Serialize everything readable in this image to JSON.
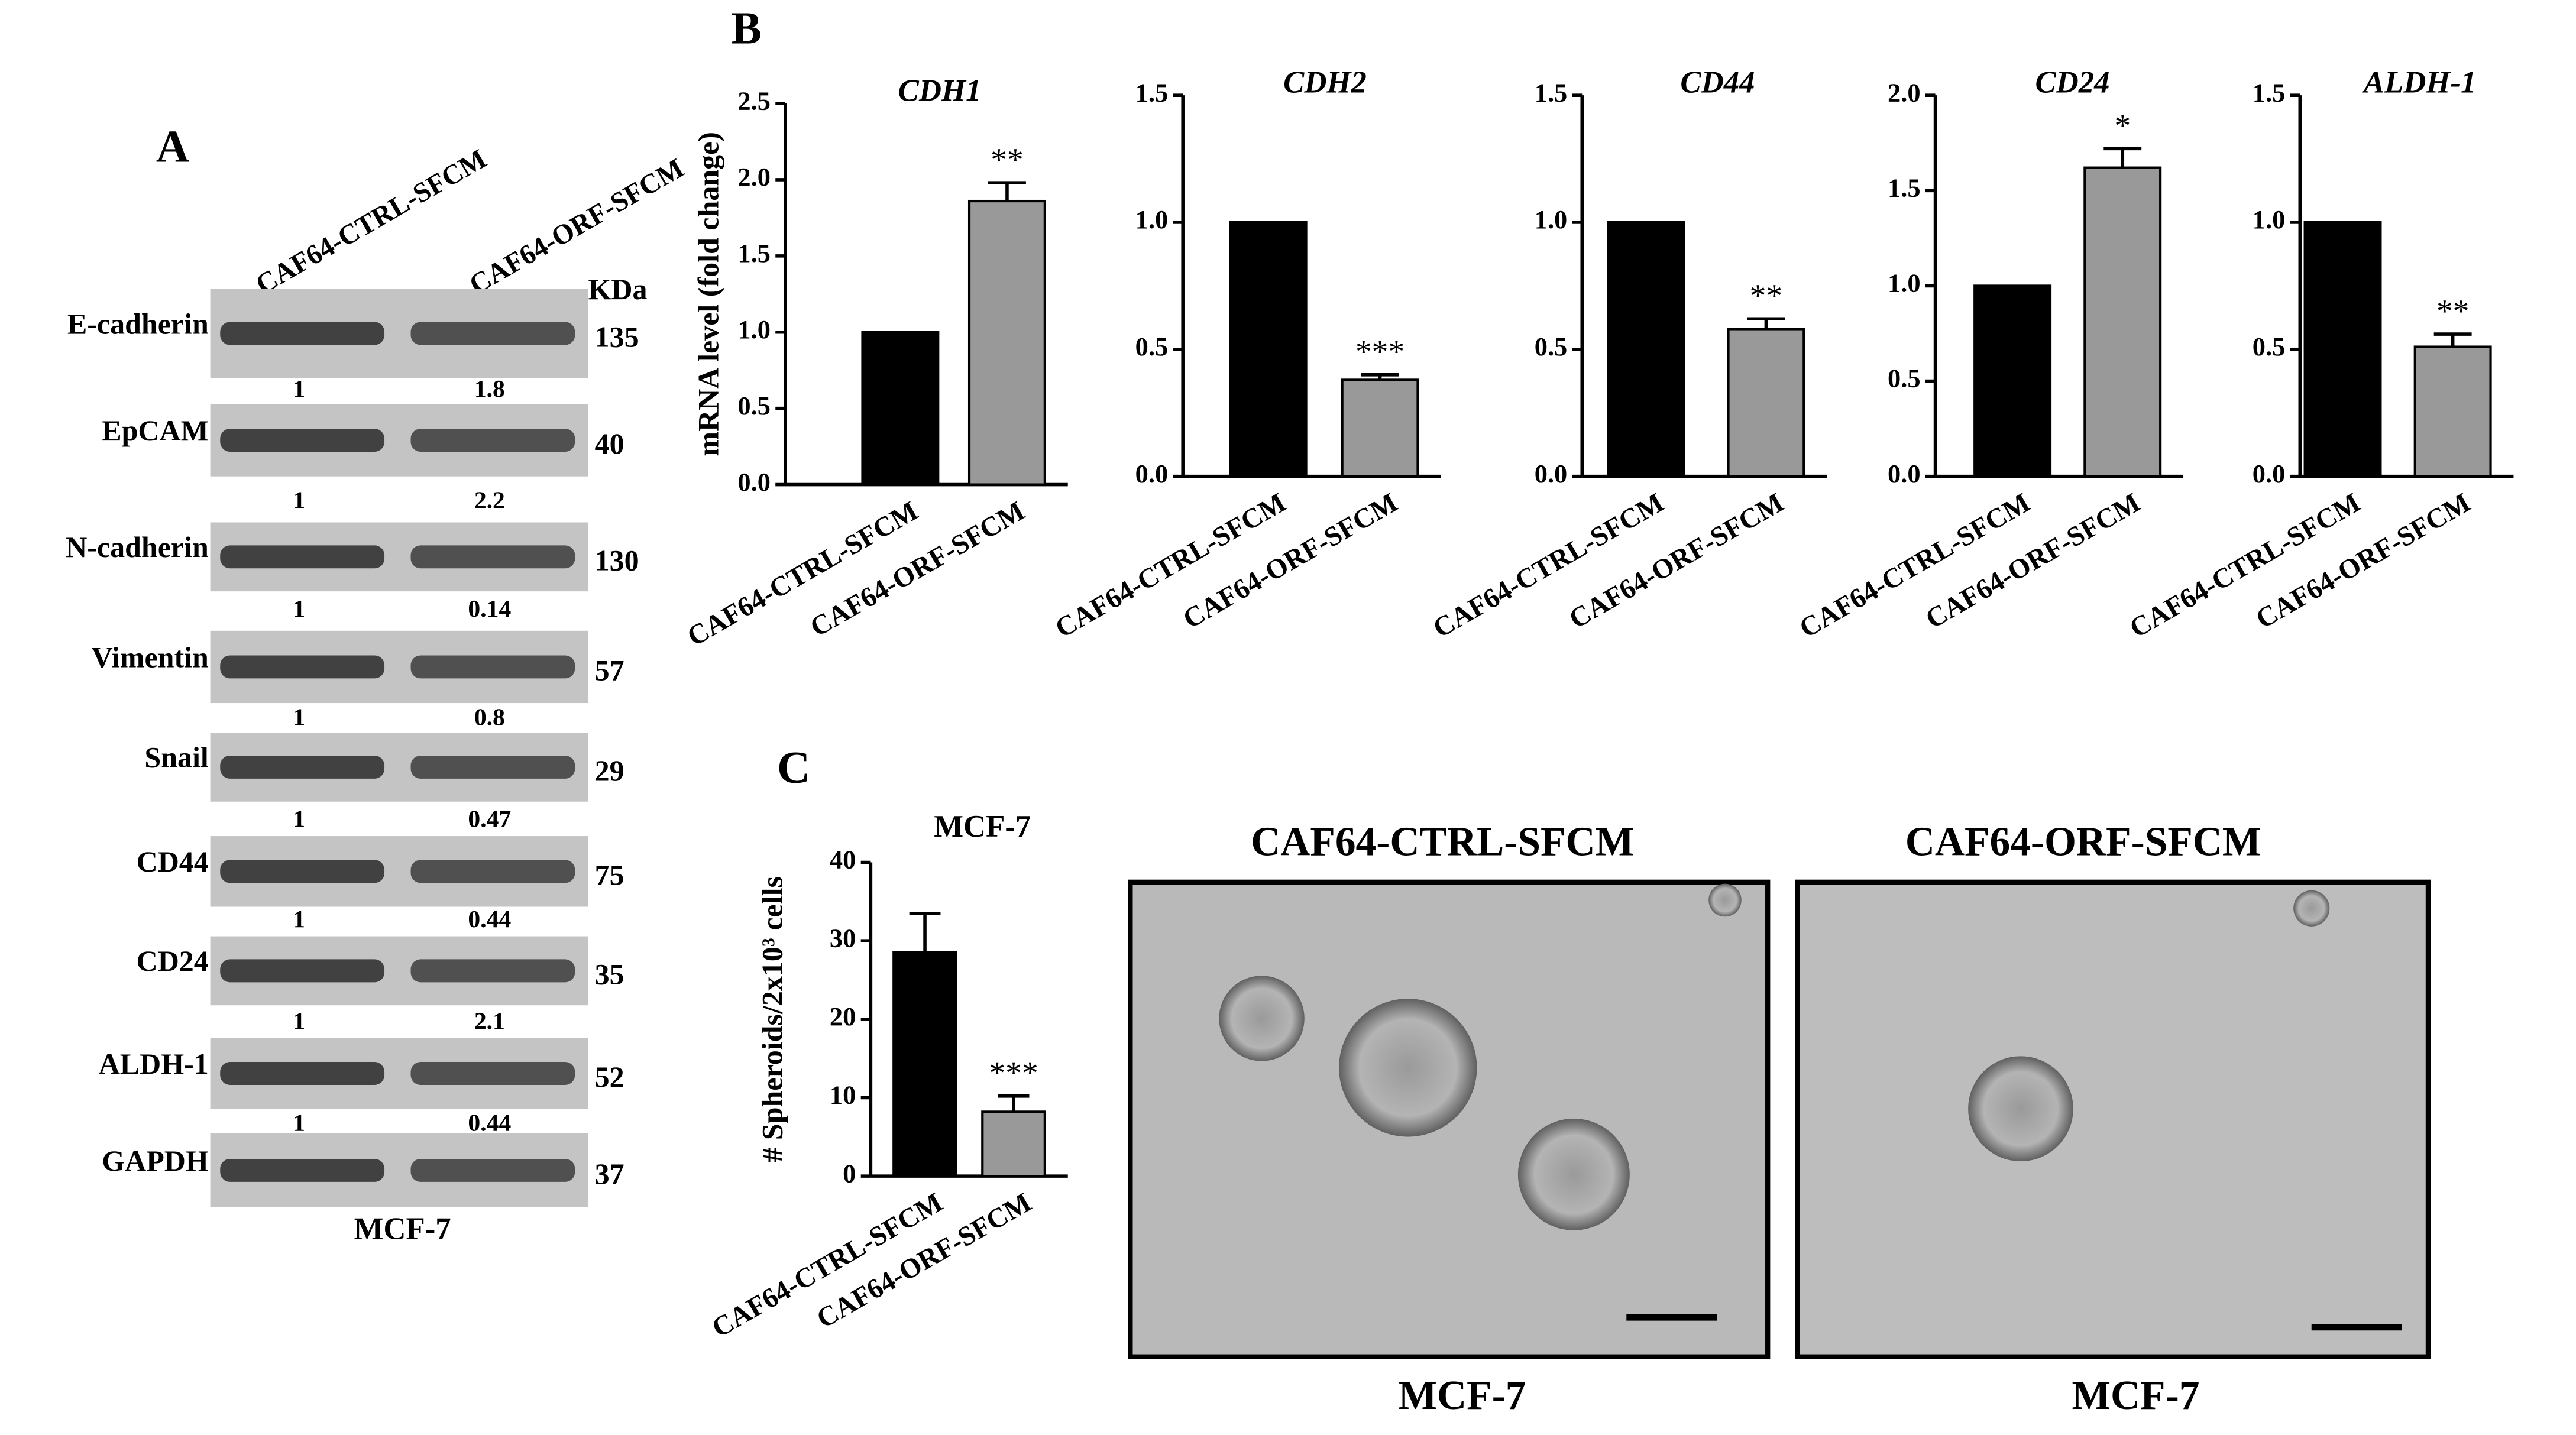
{
  "panel_labels": [
    "A",
    "B",
    "C"
  ],
  "western_blot": {
    "lanes": [
      "CAF64-CTRL-SFCM",
      "CAF64-ORF-SFCM"
    ],
    "kda_header": "KDa",
    "cell_line": "MCF-7",
    "proteins": [
      {
        "name": "E-cadherin",
        "kda": 135,
        "ratios": [
          1,
          1.8
        ]
      },
      {
        "name": "EpCAM",
        "kda": 40,
        "ratios": [
          1,
          2.2
        ]
      },
      {
        "name": "N-cadherin",
        "kda": 130,
        "ratios": [
          1,
          0.14
        ]
      },
      {
        "name": "Vimentin",
        "kda": 57,
        "ratios": [
          1,
          0.8
        ]
      },
      {
        "name": "Snail",
        "kda": 29,
        "ratios": [
          1,
          0.47
        ]
      },
      {
        "name": "CD44",
        "kda": 75,
        "ratios": [
          1,
          0.44
        ]
      },
      {
        "name": "CD24",
        "kda": 35,
        "ratios": [
          1,
          2.1
        ]
      },
      {
        "name": "ALDH-1",
        "kda": 52,
        "ratios": [
          1,
          0.44
        ]
      },
      {
        "name": "GAPDH",
        "kda": 37
      }
    ]
  },
  "chart_data": [
    {
      "type": "bar",
      "title": "CDH1",
      "ylabel": "mRNA level (fold change)",
      "categories": [
        "CAF64-CTRL-SFCM",
        "CAF64-ORF-SFCM"
      ],
      "values": [
        1,
        1.86
      ],
      "errors": [
        null,
        0.12
      ],
      "colors": [
        "#000000",
        "#999999"
      ],
      "annotations": [
        null,
        "**"
      ],
      "ylim": [
        0,
        2.5
      ],
      "yticks": [
        {
          "value": 0,
          "label": "0.0"
        },
        0.5,
        {
          "value": 1,
          "label": "1.0"
        },
        1.5,
        {
          "value": 2,
          "label": "2.0"
        },
        2.5
      ]
    },
    {
      "type": "bar",
      "title": "CDH2",
      "categories": [
        "CAF64-CTRL-SFCM",
        "CAF64-ORF-SFCM"
      ],
      "values": [
        1,
        0.38
      ],
      "errors": [
        null,
        0.02
      ],
      "colors": [
        "#000000",
        "#999999"
      ],
      "annotations": [
        null,
        "***"
      ],
      "ylim": [
        0,
        1.5
      ],
      "yticks": [
        {
          "value": 0,
          "label": "0.0"
        },
        0.5,
        {
          "value": 1,
          "label": "1.0"
        },
        1.5
      ]
    },
    {
      "type": "bar",
      "title": "CD44",
      "categories": [
        "CAF64-CTRL-SFCM",
        "CAF64-ORF-SFCM"
      ],
      "values": [
        1,
        0.58
      ],
      "errors": [
        null,
        0.04
      ],
      "colors": [
        "#000000",
        "#999999"
      ],
      "annotations": [
        null,
        "**"
      ],
      "ylim": [
        0,
        1.5
      ],
      "yticks": [
        {
          "value": 0,
          "label": "0.0"
        },
        0.5,
        {
          "value": 1,
          "label": "1.0"
        },
        1.5
      ]
    },
    {
      "type": "bar",
      "title": "CD24",
      "categories": [
        "CAF64-CTRL-SFCM",
        "CAF64-ORF-SFCM"
      ],
      "values": [
        1,
        1.62
      ],
      "errors": [
        null,
        0.1
      ],
      "colors": [
        "#000000",
        "#999999"
      ],
      "annotations": [
        null,
        "*"
      ],
      "ylim": [
        0,
        2
      ],
      "yticks": [
        {
          "value": 0,
          "label": "0.0"
        },
        0.5,
        {
          "value": 1,
          "label": "1.0"
        },
        1.5,
        {
          "value": 2,
          "label": "2.0"
        }
      ]
    },
    {
      "type": "bar",
      "title": "ALDH-1",
      "categories": [
        "CAF64-CTRL-SFCM",
        "CAF64-ORF-SFCM"
      ],
      "values": [
        1,
        0.51
      ],
      "errors": [
        null,
        0.05
      ],
      "colors": [
        "#000000",
        "#999999"
      ],
      "annotations": [
        null,
        "**"
      ],
      "ylim": [
        0,
        1.5
      ],
      "yticks": [
        {
          "value": 0,
          "label": "0.0"
        },
        0.5,
        {
          "value": 1,
          "label": "1.0"
        },
        1.5
      ]
    },
    {
      "type": "bar",
      "title": "MCF-7",
      "ylabel": "# Spheroids/2x10³ cells",
      "categories": [
        "CAF64-CTRL-SFCM",
        "CAF64-ORF-SFCM"
      ],
      "values": [
        28.5,
        8.2
      ],
      "errors": [
        5,
        2
      ],
      "colors": [
        "#000000",
        "#999999"
      ],
      "annotations": [
        null,
        "***"
      ],
      "ylim": [
        0,
        40
      ],
      "yticks": [
        0,
        10,
        20,
        30,
        40
      ]
    }
  ],
  "images": {
    "titles": [
      "CAF64-CTRL-SFCM",
      "CAF64-ORF-SFCM"
    ],
    "captions": [
      "MCF-7",
      "MCF-7"
    ]
  }
}
